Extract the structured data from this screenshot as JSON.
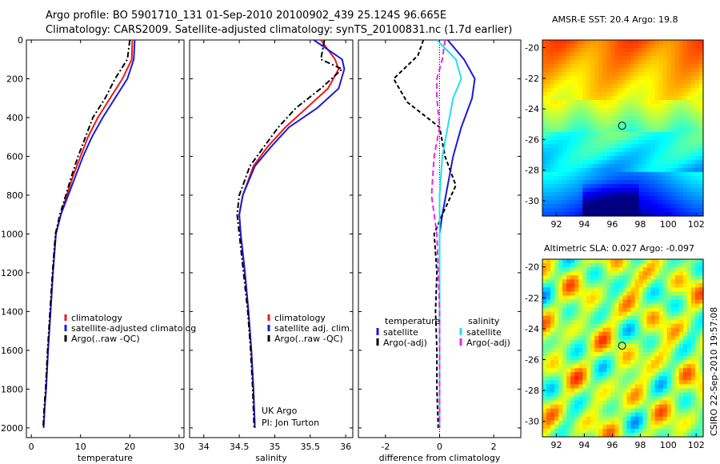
{
  "header": {
    "line1": "Argo profile: BO 5901710_131 01-Sep-2010 20100902_439 25.124S 96.665E",
    "line2": "Climatology: CARS2009. Satellite-adjusted climatology: synTS_20100831.nc (1.7d earlier)"
  },
  "colors": {
    "climatology": "#ee1a1a",
    "satellite": "#1a1ad8",
    "argo": "#000000",
    "sal_satellite": "#22e0e8",
    "sal_argo": "#ee22ee"
  },
  "chart_data": [
    {
      "type": "line",
      "xlabel": "temperature",
      "xlim": [
        -1,
        31
      ],
      "xticks": [
        0,
        10,
        20,
        30
      ],
      "ylim": [
        2050,
        0
      ],
      "yticks": [
        0,
        200,
        400,
        600,
        800,
        1000,
        1200,
        1400,
        1600,
        1800,
        2000
      ],
      "series": [
        {
          "name": "climatology",
          "color": "#ee1a1a",
          "dash": "",
          "x": [
            20.5,
            20.4,
            18.5,
            16.0,
            13.5,
            11.5,
            10.0,
            8.5,
            7.2,
            6.0,
            5.0,
            4.4,
            3.9,
            3.4,
            3.0,
            2.7,
            2.5
          ],
          "y": [
            0,
            100,
            200,
            300,
            400,
            500,
            600,
            700,
            800,
            900,
            1000,
            1200,
            1400,
            1600,
            1800,
            1900,
            2000
          ]
        },
        {
          "name": "satellite-adjusted climatology",
          "color": "#1a1ad8",
          "dash": "",
          "x": [
            21.0,
            20.8,
            19.5,
            17.0,
            14.5,
            12.3,
            10.5,
            9.0,
            7.5,
            6.0,
            5.0,
            4.4,
            3.9,
            3.4,
            3.0,
            2.7,
            2.5
          ],
          "y": [
            0,
            100,
            200,
            300,
            400,
            500,
            600,
            700,
            800,
            900,
            1000,
            1200,
            1400,
            1600,
            1800,
            1900,
            2000
          ]
        },
        {
          "name": "Argo(..raw -QC)",
          "color": "#000000",
          "dash": "7,3,2,3",
          "x": [
            20.0,
            19.5,
            17.0,
            15.0,
            12.5,
            11.0,
            9.5,
            8.2,
            7.0,
            5.8,
            4.9,
            4.3,
            3.8,
            3.3,
            2.9,
            2.6,
            2.4
          ],
          "y": [
            0,
            100,
            200,
            300,
            400,
            500,
            600,
            700,
            800,
            900,
            1000,
            1200,
            1400,
            1600,
            1800,
            1900,
            2000
          ]
        }
      ],
      "legend": [
        "climatology",
        "satellite-adjusted climatolog",
        "Argo(..raw -QC)"
      ]
    },
    {
      "type": "line",
      "xlabel": "salinity",
      "xlim": [
        33.8,
        36.1
      ],
      "xticks": [
        34,
        34.5,
        35,
        35.5,
        36
      ],
      "ylim": [
        2050,
        0
      ],
      "yticks": [
        0,
        200,
        400,
        600,
        800,
        1000,
        1200,
        1400,
        1600,
        1800,
        2000
      ],
      "series": [
        {
          "name": "climatology",
          "color": "#ee1a1a",
          "dash": "",
          "x": [
            35.65,
            35.85,
            35.9,
            35.75,
            35.45,
            35.15,
            34.9,
            34.7,
            34.55,
            34.5,
            34.52,
            34.58,
            34.63,
            34.67,
            34.7,
            34.72
          ],
          "y": [
            0,
            100,
            150,
            250,
            350,
            450,
            550,
            650,
            800,
            900,
            1000,
            1200,
            1400,
            1600,
            1800,
            2000
          ]
        },
        {
          "name": "satellite adj. clim.",
          "color": "#1a1ad8",
          "dash": "",
          "x": [
            35.55,
            35.95,
            35.98,
            35.9,
            35.6,
            35.2,
            34.95,
            34.72,
            34.55,
            34.5,
            34.52,
            34.58,
            34.63,
            34.67,
            34.7,
            34.72
          ],
          "y": [
            0,
            100,
            150,
            250,
            350,
            450,
            550,
            650,
            800,
            900,
            1000,
            1200,
            1400,
            1600,
            1800,
            2000
          ]
        },
        {
          "name": "Argo(..raw -QC)",
          "color": "#000000",
          "dash": "7,3,2,3",
          "x": [
            35.7,
            35.65,
            35.95,
            35.65,
            35.3,
            35.05,
            34.85,
            34.65,
            34.5,
            34.47,
            34.5,
            34.56,
            34.62,
            34.66,
            34.69,
            34.71
          ],
          "y": [
            0,
            100,
            150,
            250,
            350,
            450,
            550,
            650,
            800,
            900,
            1000,
            1200,
            1400,
            1600,
            1800,
            2000
          ]
        }
      ],
      "legend": [
        "climatology",
        "satellite adj. clim.",
        "Argo(..raw -QC)"
      ],
      "annotation": [
        "UK Argo",
        "PI: Jon Turton"
      ]
    },
    {
      "type": "line",
      "xlabel": "difference from climatology",
      "xlim": [
        -3,
        3
      ],
      "xticks": [
        -2,
        0,
        2
      ],
      "ylim": [
        2050,
        0
      ],
      "yticks": [
        0,
        200,
        400,
        600,
        800,
        1000,
        1200,
        1400,
        1600,
        1800,
        2000
      ],
      "series": [
        {
          "name": "satellite",
          "group": "temperature",
          "color": "#1a1ad8",
          "dash": "",
          "x": [
            0.3,
            0.9,
            1.3,
            1.2,
            0.8,
            0.5,
            0.3,
            0.1,
            0.0,
            0.0,
            0.0,
            0.0,
            0.0,
            0.0
          ],
          "y": [
            0,
            100,
            200,
            300,
            450,
            600,
            750,
            900,
            1000,
            1200,
            1400,
            1600,
            1800,
            2000
          ]
        },
        {
          "name": "Argo(-adj)",
          "group": "temperature",
          "color": "#000000",
          "dash": "5,3",
          "x": [
            -0.6,
            -0.8,
            -1.7,
            -1.2,
            0.0,
            0.2,
            0.6,
            0.1,
            -0.2,
            -0.1,
            -0.15,
            -0.1,
            -0.1,
            -0.05
          ],
          "y": [
            0,
            80,
            200,
            320,
            450,
            600,
            750,
            900,
            1000,
            1200,
            1400,
            1600,
            1800,
            2000
          ]
        },
        {
          "name": "satellite",
          "group": "salinity",
          "color": "#22e0e8",
          "dash": "",
          "x": [
            -0.1,
            0.6,
            0.8,
            0.5,
            0.3,
            0.1,
            0.0,
            0.0,
            0.0,
            0.0,
            0.0,
            0.0
          ],
          "y": [
            0,
            100,
            200,
            300,
            450,
            600,
            800,
            1000,
            1200,
            1400,
            1600,
            2000
          ]
        },
        {
          "name": "Argo(-adj)",
          "group": "salinity",
          "color": "#ee22ee",
          "dash": "7,4",
          "x": [
            0.2,
            0.1,
            -0.1,
            -0.1,
            0.0,
            -0.2,
            -0.3,
            -0.1,
            -0.05,
            0.0,
            0.0,
            0.0
          ],
          "y": [
            0,
            100,
            200,
            300,
            450,
            600,
            800,
            1000,
            1200,
            1400,
            1600,
            2000
          ]
        }
      ],
      "legend_temperature": [
        "temperature",
        "satellite",
        "Argo(-adj)"
      ],
      "legend_salinity": [
        "salinity",
        "satellite",
        "Argo(-adj)"
      ]
    },
    {
      "type": "heatmap",
      "title": "AMSR-E SST: 20.4 Argo: 19.8",
      "xlim": [
        91,
        102.5
      ],
      "ylim": [
        -31,
        -19.5
      ],
      "xticks": [
        92,
        94,
        96,
        98,
        100,
        102
      ],
      "yticks": [
        -20,
        -22,
        -24,
        -26,
        -28,
        -30
      ],
      "marker": {
        "x": 96.7,
        "y": -25.1
      }
    },
    {
      "type": "heatmap",
      "title": "Altimetric SLA: 0.027 Argo: -0.097",
      "xlim": [
        91,
        102.5
      ],
      "ylim": [
        -31,
        -19.5
      ],
      "xticks": [
        92,
        94,
        96,
        98,
        100,
        102
      ],
      "yticks": [
        -20,
        -22,
        -24,
        -26,
        -28,
        -30
      ],
      "marker": {
        "x": 96.7,
        "y": -25.1
      }
    }
  ],
  "credit": "CSIRO 22-Sep-2010 19:57:08"
}
